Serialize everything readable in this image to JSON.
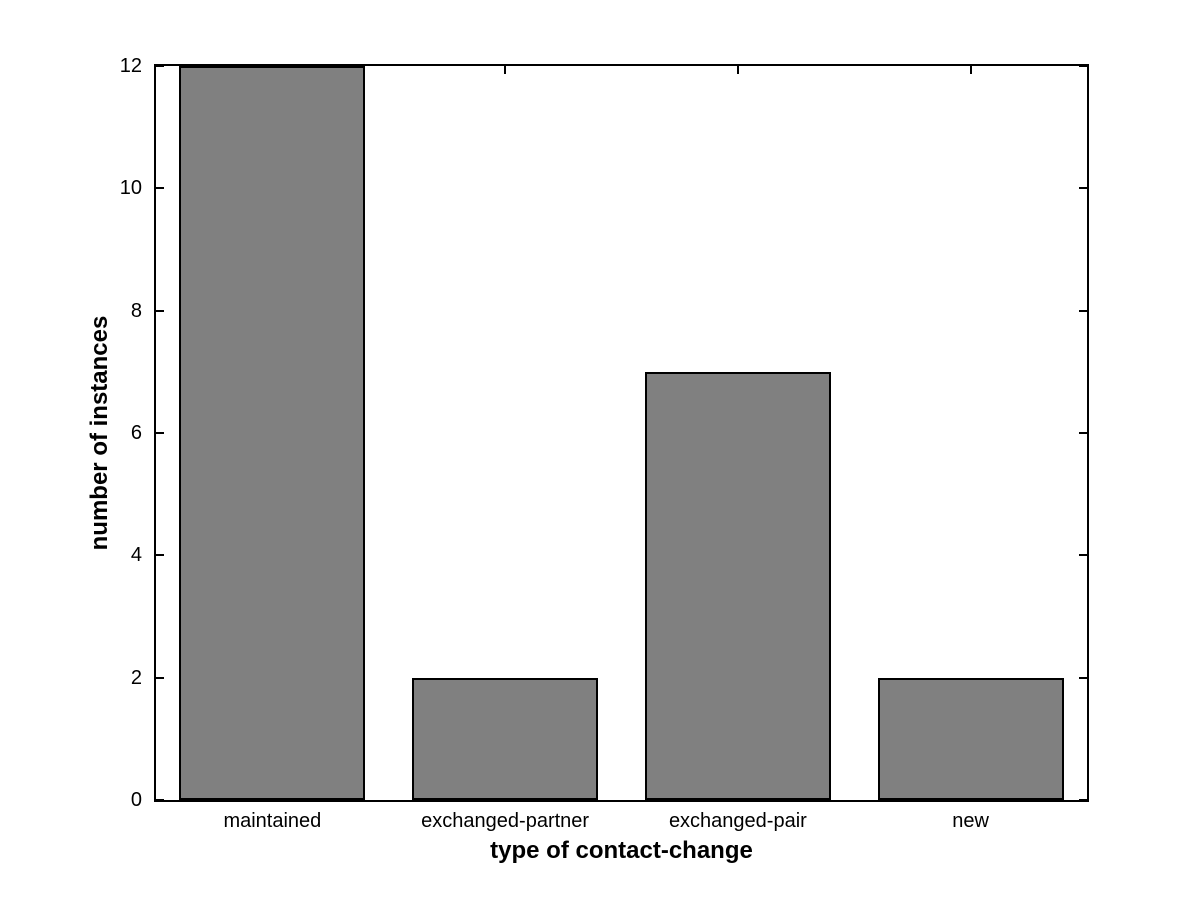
{
  "chart_data": {
    "type": "bar",
    "categories": [
      "maintained",
      "exchanged-partner",
      "exchanged-pair",
      "new"
    ],
    "values": [
      12,
      2,
      7,
      2
    ],
    "xlabel": "type of contact-change",
    "ylabel": "number of instances",
    "yticks": [
      0,
      2,
      4,
      6,
      8,
      10,
      12
    ],
    "ylim": [
      0,
      12
    ],
    "bar_width_fraction": 0.8,
    "bar_color": "#808080",
    "bar_edge_color": "#000000",
    "axis_color": "#000000",
    "background_color": "#ffffff",
    "grid": "off",
    "legend": "none",
    "tick_direction": "in",
    "box": "on"
  }
}
